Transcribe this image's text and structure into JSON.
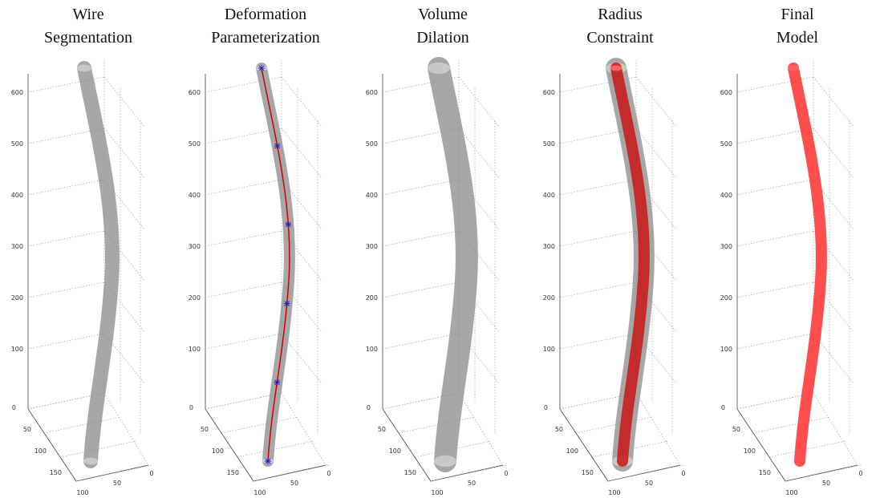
{
  "panels": [
    {
      "title": [
        "Wire",
        "Segmentation"
      ]
    },
    {
      "title": [
        "Deformation",
        "Parameterization"
      ]
    },
    {
      "title": [
        "Volume",
        "Dilation"
      ]
    },
    {
      "title": [
        "Radius",
        "Constraint"
      ]
    },
    {
      "title": [
        "Final",
        "Model"
      ]
    }
  ],
  "axes": {
    "z_ticks": [
      "600",
      "500",
      "400",
      "300",
      "200",
      "100"
    ],
    "y_ticks": [
      "0",
      "50",
      "100",
      "150"
    ],
    "x_ticks": [
      "100",
      "50",
      "0"
    ]
  }
}
